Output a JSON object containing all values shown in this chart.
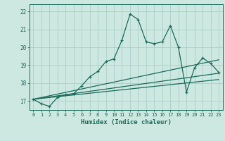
{
  "xlabel": "Humidex (Indice chaleur)",
  "bg_color": "#cce8e0",
  "line_color": "#1a6b5a",
  "grid_color": "#aacfc8",
  "xlim": [
    -0.5,
    23.5
  ],
  "ylim": [
    16.5,
    22.4
  ],
  "xticks": [
    0,
    1,
    2,
    3,
    4,
    5,
    6,
    7,
    8,
    9,
    10,
    11,
    12,
    13,
    14,
    15,
    16,
    17,
    18,
    19,
    20,
    21,
    22,
    23
  ],
  "yticks": [
    17,
    18,
    19,
    20,
    21,
    22
  ],
  "series1_x": [
    0,
    1,
    2,
    3,
    4,
    5,
    6,
    7,
    8,
    9,
    10,
    11,
    12,
    13,
    14,
    15,
    16,
    17,
    18,
    19,
    20,
    21,
    22,
    23
  ],
  "series1_y": [
    17.1,
    16.85,
    16.7,
    17.2,
    17.35,
    17.4,
    17.85,
    18.35,
    18.65,
    19.2,
    19.35,
    20.4,
    21.85,
    21.55,
    20.3,
    20.2,
    20.3,
    21.2,
    20.0,
    17.5,
    18.85,
    19.4,
    19.1,
    18.6
  ],
  "series2_x": [
    0,
    23
  ],
  "series2_y": [
    17.1,
    19.3
  ],
  "series3_x": [
    0,
    23
  ],
  "series3_y": [
    17.1,
    18.55
  ],
  "series4_x": [
    0,
    23
  ],
  "series4_y": [
    17.1,
    18.2
  ]
}
